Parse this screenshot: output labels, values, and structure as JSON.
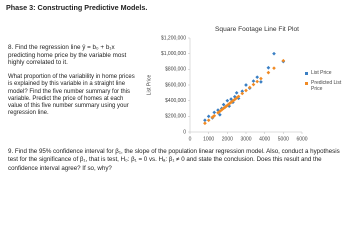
{
  "header": {
    "title": "Phase 3: Constructing Predictive Models."
  },
  "question8": {
    "text": "8. Find the regression line ŷ = b₀ + b₁x predicting home price by the variable most highly correlated to it.",
    "paragraph": "What proportion of the variability in home prices is explained by this variable in a straight line model? Find the five number summary for this variable. Predict the price of homes at each value of this five number summary using your regression line."
  },
  "chart_data": {
    "type": "scatter",
    "title": "Square Footage Line Fit Plot",
    "y_label": "List Price",
    "xlim": [
      0,
      6000
    ],
    "xticks": [
      0,
      1000,
      2000,
      3000,
      4000,
      5000,
      6000
    ],
    "ylim": [
      0,
      1200000
    ],
    "yticks": [
      0,
      {
        "value": 200000,
        "label": "$200,000"
      },
      {
        "value": 400000,
        "label": "$400,000"
      },
      {
        "value": 600000,
        "label": "$600,000"
      },
      {
        "value": 800000,
        "label": "$800,000"
      },
      {
        "value": 1000000,
        "label": "$1,000,000"
      },
      {
        "value": 1200000,
        "label": "$1,200,000"
      }
    ],
    "x": [
      800,
      1000,
      1200,
      1300,
      1500,
      1600,
      1700,
      1800,
      1900,
      2000,
      2100,
      2200,
      2300,
      2400,
      2500,
      2600,
      2800,
      3000,
      3200,
      3400,
      3600,
      3800,
      4200,
      4500,
      5000
    ],
    "series": [
      {
        "name": "List Price",
        "color": "#3a7fc4",
        "values": [
          150000,
          200000,
          180000,
          250000,
          280000,
          220000,
          300000,
          350000,
          320000,
          400000,
          330000,
          420000,
          380000,
          450000,
          500000,
          430000,
          520000,
          600000,
          560000,
          650000,
          700000,
          640000,
          820000,
          1000000,
          900000
        ]
      },
      {
        "name": "Predicted List Price",
        "color": "#f08a24",
        "values": [
          112000,
          150000,
          188000,
          207000,
          245000,
          264000,
          283000,
          302000,
          321000,
          340000,
          359000,
          378000,
          397000,
          416000,
          435000,
          454000,
          492000,
          530000,
          568000,
          606000,
          644000,
          682000,
          758000,
          815000,
          910000
        ]
      }
    ]
  },
  "question9": {
    "text": "9. Find the 95% confidence interval for β₁, the slope of the population linear regression model. Also, conduct a hypothesis test for the significance of β₁, that is test, H₀: β₁ = 0 vs. Hₐ: β₁ ≠ 0 and state the conclusion. Does this result and the confidence interval agree? If so, why?"
  }
}
